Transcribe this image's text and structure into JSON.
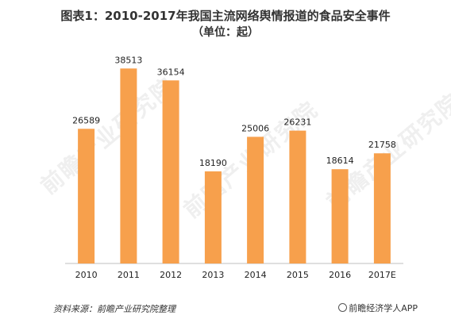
{
  "chart_data": {
    "type": "bar",
    "title": "图表1：2010-2017年我国主流网络舆情报道的食品安全事件",
    "subtitle": "（单位：起）",
    "categories": [
      "2010",
      "2011",
      "2012",
      "2013",
      "2014",
      "2015",
      "2016",
      "2017E"
    ],
    "values": [
      26589,
      38513,
      36154,
      18190,
      25006,
      26231,
      18614,
      21758
    ],
    "value_labels": [
      "26589",
      "38513",
      "36154",
      "18190",
      "25006",
      "26231",
      "18614",
      "21758"
    ],
    "ylim": [
      0,
      42000
    ],
    "grid": false,
    "legend": "none",
    "bar_color": "#F7A04C"
  },
  "footer": {
    "source": "资料来源：前瞻产业研究院整理",
    "app": "前瞻经济学人APP"
  },
  "watermark": {
    "text": "前瞻产业研究院"
  },
  "icons": {
    "app_icon": "copyright-circle-icon"
  }
}
